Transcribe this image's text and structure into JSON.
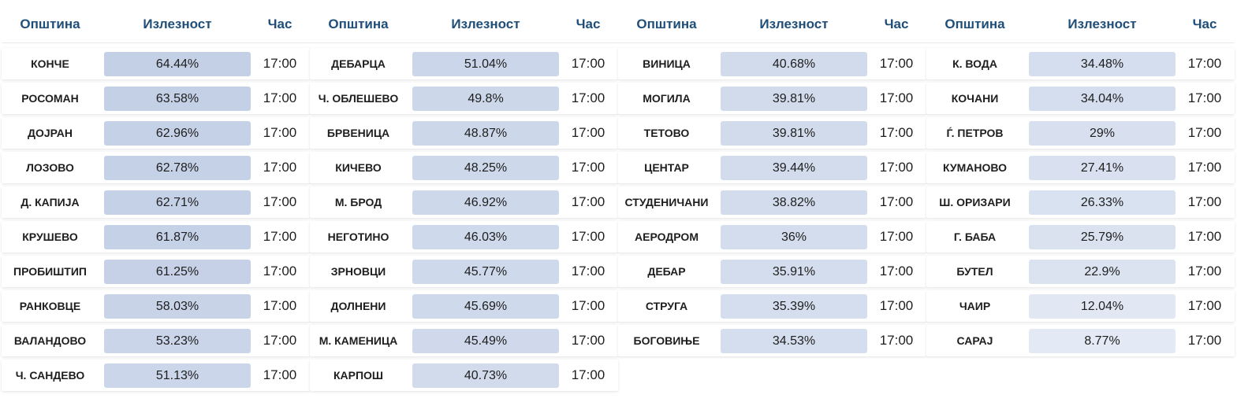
{
  "headers": {
    "municipality": "Општина",
    "turnout": "Излезност",
    "time": "Час"
  },
  "colors": {
    "header_text": "#1f4e79",
    "cell_text": "#1e1e1e"
  },
  "columns": [
    {
      "rows": [
        {
          "municipality": "КОНЧЕ",
          "turnout": "64.44%",
          "turnout_value": 64.44,
          "time": "17:00"
        },
        {
          "municipality": "РОСОМАН",
          "turnout": "63.58%",
          "turnout_value": 63.58,
          "time": "17:00"
        },
        {
          "municipality": "ДОЈРАН",
          "turnout": "62.96%",
          "turnout_value": 62.96,
          "time": "17:00"
        },
        {
          "municipality": "ЛОЗОВО",
          "turnout": "62.78%",
          "turnout_value": 62.78,
          "time": "17:00"
        },
        {
          "municipality": "Д. КАПИЈА",
          "turnout": "62.71%",
          "turnout_value": 62.71,
          "time": "17:00"
        },
        {
          "municipality": "КРУШЕВО",
          "turnout": "61.87%",
          "turnout_value": 61.87,
          "time": "17:00"
        },
        {
          "municipality": "ПРОБИШТИП",
          "turnout": "61.25%",
          "turnout_value": 61.25,
          "time": "17:00"
        },
        {
          "municipality": "РАНКОВЦЕ",
          "turnout": "58.03%",
          "turnout_value": 58.03,
          "time": "17:00"
        },
        {
          "municipality": "ВАЛАНДОВО",
          "turnout": "53.23%",
          "turnout_value": 53.23,
          "time": "17:00"
        },
        {
          "municipality": "Ч. САНДЕВО",
          "turnout": "51.13%",
          "turnout_value": 51.13,
          "time": "17:00"
        }
      ]
    },
    {
      "rows": [
        {
          "municipality": "ДЕБАРЦА",
          "turnout": "51.04%",
          "turnout_value": 51.04,
          "time": "17:00"
        },
        {
          "municipality": "Ч. ОБЛЕШЕВО",
          "turnout": "49.8%",
          "turnout_value": 49.8,
          "time": "17:00"
        },
        {
          "municipality": "БРВЕНИЦА",
          "turnout": "48.87%",
          "turnout_value": 48.87,
          "time": "17:00"
        },
        {
          "municipality": "КИЧЕВО",
          "turnout": "48.25%",
          "turnout_value": 48.25,
          "time": "17:00"
        },
        {
          "municipality": "М. БРОД",
          "turnout": "46.92%",
          "turnout_value": 46.92,
          "time": "17:00"
        },
        {
          "municipality": "НЕГОТИНО",
          "turnout": "46.03%",
          "turnout_value": 46.03,
          "time": "17:00"
        },
        {
          "municipality": "ЗРНОВЦИ",
          "turnout": "45.77%",
          "turnout_value": 45.77,
          "time": "17:00"
        },
        {
          "municipality": "ДОЛНЕНИ",
          "turnout": "45.69%",
          "turnout_value": 45.69,
          "time": "17:00"
        },
        {
          "municipality": "М. КАМЕНИЦА",
          "turnout": "45.49%",
          "turnout_value": 45.49,
          "time": "17:00"
        },
        {
          "municipality": "КАРПОШ",
          "turnout": "40.73%",
          "turnout_value": 40.73,
          "time": "17:00"
        }
      ]
    },
    {
      "rows": [
        {
          "municipality": "ВИНИЦА",
          "turnout": "40.68%",
          "turnout_value": 40.68,
          "time": "17:00"
        },
        {
          "municipality": "МОГИЛА",
          "turnout": "39.81%",
          "turnout_value": 39.81,
          "time": "17:00"
        },
        {
          "municipality": "ТЕТОВО",
          "turnout": "39.81%",
          "turnout_value": 39.81,
          "time": "17:00"
        },
        {
          "municipality": "ЦЕНТАР",
          "turnout": "39.44%",
          "turnout_value": 39.44,
          "time": "17:00"
        },
        {
          "municipality": "СТУДЕНИЧАНИ",
          "turnout": "38.82%",
          "turnout_value": 38.82,
          "time": "17:00"
        },
        {
          "municipality": "АЕРОДРОМ",
          "turnout": "36%",
          "turnout_value": 36,
          "time": "17:00"
        },
        {
          "municipality": "ДЕБАР",
          "turnout": "35.91%",
          "turnout_value": 35.91,
          "time": "17:00"
        },
        {
          "municipality": "СТРУГА",
          "turnout": "35.39%",
          "turnout_value": 35.39,
          "time": "17:00"
        },
        {
          "municipality": "БОГОВИЊЕ",
          "turnout": "34.53%",
          "turnout_value": 34.53,
          "time": "17:00"
        }
      ]
    },
    {
      "rows": [
        {
          "municipality": "К. ВОДА",
          "turnout": "34.48%",
          "turnout_value": 34.48,
          "time": "17:00"
        },
        {
          "municipality": "КОЧАНИ",
          "turnout": "34.04%",
          "turnout_value": 34.04,
          "time": "17:00"
        },
        {
          "municipality": "Ѓ. ПЕТРОВ",
          "turnout": "29%",
          "turnout_value": 29,
          "time": "17:00"
        },
        {
          "municipality": "КУМАНОВО",
          "turnout": "27.41%",
          "turnout_value": 27.41,
          "time": "17:00"
        },
        {
          "municipality": "Ш. ОРИЗАРИ",
          "turnout": "26.33%",
          "turnout_value": 26.33,
          "time": "17:00"
        },
        {
          "municipality": "Г. БАБА",
          "turnout": "25.79%",
          "turnout_value": 25.79,
          "time": "17:00"
        },
        {
          "municipality": "БУТЕЛ",
          "turnout": "22.9%",
          "turnout_value": 22.9,
          "time": "17:00"
        },
        {
          "municipality": "ЧАИР",
          "turnout": "12.04%",
          "turnout_value": 12.04,
          "time": "17:00"
        },
        {
          "municipality": "САРАЈ",
          "turnout": "8.77%",
          "turnout_value": 8.77,
          "time": "17:00"
        }
      ]
    }
  ]
}
